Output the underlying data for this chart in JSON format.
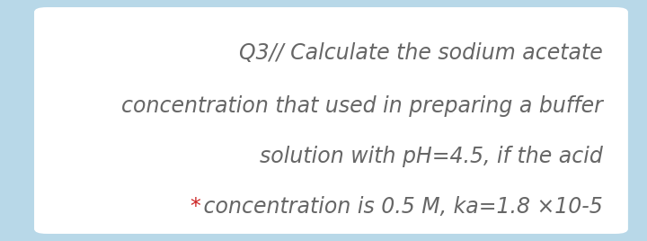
{
  "bg_color": "#b8d8e8",
  "card_color": "#ffffff",
  "text_color": "#666666",
  "star_color": "#cc2222",
  "line1": "Q3// Calculate the sodium acetate",
  "line2": "concentration that used in preparing a buffer",
  "line3": "solution with pH=4.5, if the acid",
  "line4_star": "*",
  "line4_text": " concentration is 0.5 M, ka=1.8 ×10-5",
  "font_size": 17,
  "font_family": "Palatino Linotype",
  "fig_width": 7.2,
  "fig_height": 2.68,
  "dpi": 100
}
